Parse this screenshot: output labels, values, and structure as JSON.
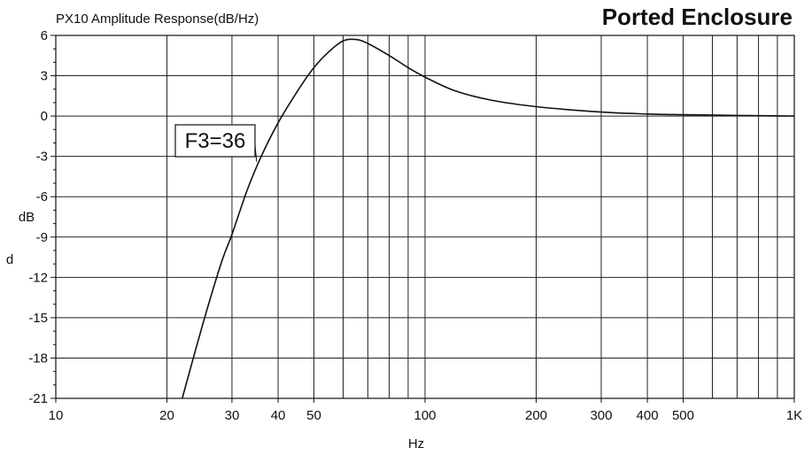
{
  "chart_data": {
    "type": "line",
    "title": "PX10  Amplitude Response(dB/Hz)",
    "subtitle": "Ported Enclosure",
    "xlabel": "Hz",
    "ylabel_top": "dB",
    "ylabel_bottom": "d",
    "x_scale": "log",
    "xlim": [
      10,
      1000
    ],
    "ylim": [
      -21,
      6
    ],
    "y_ticks": [
      6,
      3,
      0,
      -3,
      -6,
      -9,
      -12,
      -15,
      -18,
      -21
    ],
    "y_tick_labels": [
      "6",
      "3",
      "0",
      "-3",
      "-6",
      "-9",
      "-12",
      "-15",
      "-18",
      "-21"
    ],
    "x_tick_labels": [
      {
        "value": 10,
        "label": "10"
      },
      {
        "value": 20,
        "label": "20"
      },
      {
        "value": 30,
        "label": "30"
      },
      {
        "value": 40,
        "label": "40"
      },
      {
        "value": 50,
        "label": "50"
      },
      {
        "value": 100,
        "label": "100"
      },
      {
        "value": 200,
        "label": "200"
      },
      {
        "value": 300,
        "label": "300"
      },
      {
        "value": 400,
        "label": "400"
      },
      {
        "value": 500,
        "label": "500"
      },
      {
        "value": 1000,
        "label": "1K"
      }
    ],
    "grid": true,
    "series": [
      {
        "color": "#111111",
        "x": [
          22,
          25,
          28,
          30,
          33,
          36,
          40,
          45,
          50,
          55,
          60,
          65,
          70,
          80,
          90,
          100,
          120,
          150,
          200,
          300,
          400,
          500,
          700,
          1000
        ],
        "y": [
          -21,
          -15.5,
          -11,
          -8.8,
          -5.5,
          -3,
          -0.5,
          1.8,
          3.6,
          4.8,
          5.6,
          5.7,
          5.4,
          4.5,
          3.6,
          2.9,
          1.9,
          1.2,
          0.7,
          0.3,
          0.15,
          0.1,
          0.05,
          0
        ]
      }
    ],
    "annotation": {
      "text": "F3=36",
      "x": 36,
      "y": -3
    }
  }
}
